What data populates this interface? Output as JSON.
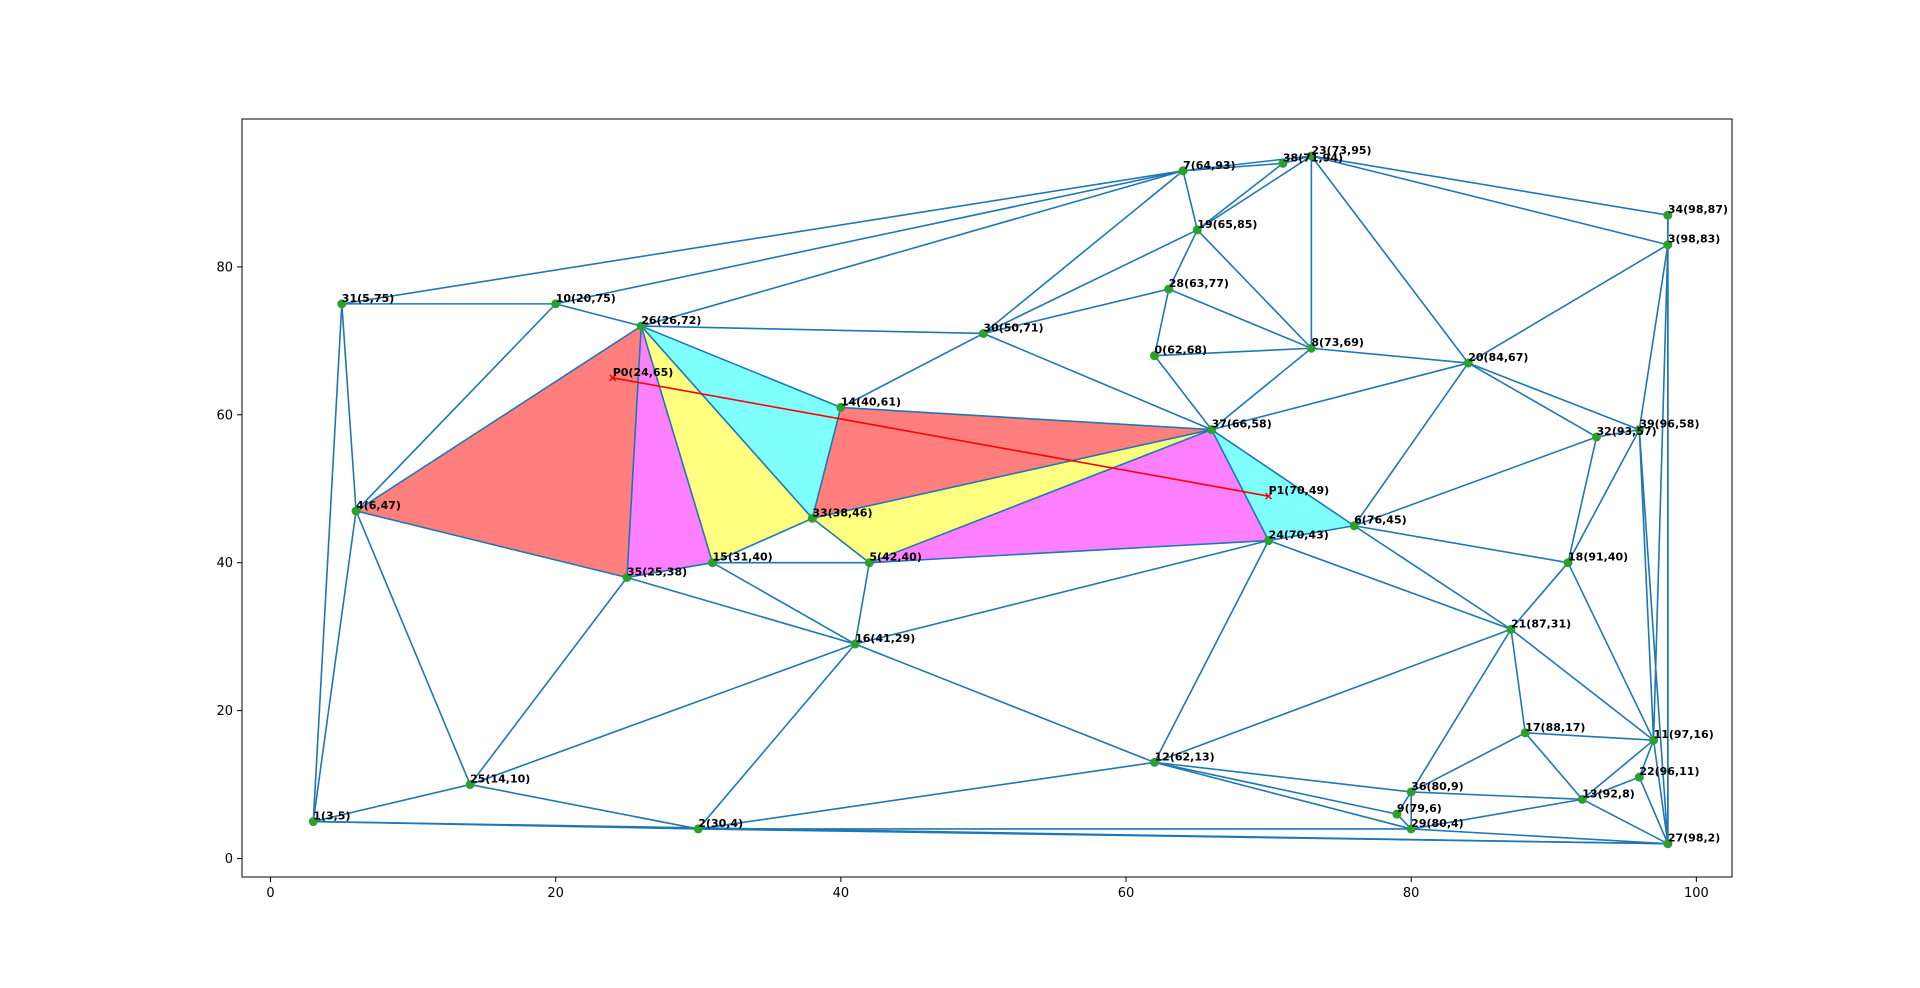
{
  "chart_data": {
    "type": "triangulation",
    "xlim": [
      -2,
      102.5
    ],
    "ylim": [
      -2.5,
      100
    ],
    "x_ticks": [
      0,
      20,
      40,
      60,
      80,
      100
    ],
    "y_ticks": [
      0,
      20,
      40,
      60,
      80
    ],
    "grid": false,
    "colors": {
      "edge": "#1f77b4",
      "point": "#2ca02c",
      "path": "#ff0000",
      "fills": [
        "#ff7f7f",
        "#ff80ff",
        "#ffff80",
        "#80ffff"
      ]
    },
    "points": [
      {
        "id": 0,
        "x": 62,
        "y": 68,
        "label": "0(62,68)"
      },
      {
        "id": 1,
        "x": 3,
        "y": 5,
        "label": "1(3,5)"
      },
      {
        "id": 2,
        "x": 30,
        "y": 4,
        "label": "2(30,4)"
      },
      {
        "id": 3,
        "x": 98,
        "y": 83,
        "label": "3(98,83)"
      },
      {
        "id": 4,
        "x": 6,
        "y": 47,
        "label": "4(6,47)"
      },
      {
        "id": 5,
        "x": 42,
        "y": 40,
        "label": "5(42,40)"
      },
      {
        "id": 6,
        "x": 76,
        "y": 45,
        "label": "6(76,45)"
      },
      {
        "id": 7,
        "x": 64,
        "y": 93,
        "label": "7(64,93)"
      },
      {
        "id": 8,
        "x": 73,
        "y": 69,
        "label": "8(73,69)"
      },
      {
        "id": 9,
        "x": 79,
        "y": 6,
        "label": "9(79,6)"
      },
      {
        "id": 10,
        "x": 20,
        "y": 75,
        "label": "10(20,75)"
      },
      {
        "id": 11,
        "x": 97,
        "y": 16,
        "label": "11(97,16)"
      },
      {
        "id": 12,
        "x": 62,
        "y": 13,
        "label": "12(62,13)"
      },
      {
        "id": 13,
        "x": 92,
        "y": 8,
        "label": "13(92,8)"
      },
      {
        "id": 14,
        "x": 40,
        "y": 61,
        "label": "14(40,61)"
      },
      {
        "id": 15,
        "x": 31,
        "y": 40,
        "label": "15(31,40)"
      },
      {
        "id": 16,
        "x": 41,
        "y": 29,
        "label": "16(41,29)"
      },
      {
        "id": 17,
        "x": 88,
        "y": 17,
        "label": "17(88,17)"
      },
      {
        "id": 18,
        "x": 91,
        "y": 40,
        "label": "18(91,40)"
      },
      {
        "id": 19,
        "x": 65,
        "y": 85,
        "label": "19(65,85)"
      },
      {
        "id": 20,
        "x": 84,
        "y": 67,
        "label": "20(84,67)"
      },
      {
        "id": 21,
        "x": 87,
        "y": 31,
        "label": "21(87,31)"
      },
      {
        "id": 22,
        "x": 96,
        "y": 11,
        "label": "22(96,11)"
      },
      {
        "id": 23,
        "x": 73,
        "y": 95,
        "label": "23(73,95)"
      },
      {
        "id": 24,
        "x": 70,
        "y": 43,
        "label": "24(70,43)"
      },
      {
        "id": 25,
        "x": 14,
        "y": 10,
        "label": "25(14,10)"
      },
      {
        "id": 26,
        "x": 26,
        "y": 72,
        "label": "26(26,72)"
      },
      {
        "id": 27,
        "x": 98,
        "y": 2,
        "label": "27(98,2)"
      },
      {
        "id": 28,
        "x": 63,
        "y": 77,
        "label": "28(63,77)"
      },
      {
        "id": 29,
        "x": 80,
        "y": 4,
        "label": "29(80,4)"
      },
      {
        "id": 30,
        "x": 50,
        "y": 71,
        "label": "30(50,71)"
      },
      {
        "id": 31,
        "x": 5,
        "y": 75,
        "label": "31(5,75)"
      },
      {
        "id": 32,
        "x": 93,
        "y": 57,
        "label": "32(93,57)"
      },
      {
        "id": 33,
        "x": 38,
        "y": 46,
        "label": "33(38,46)"
      },
      {
        "id": 34,
        "x": 98,
        "y": 87,
        "label": "34(98,87)"
      },
      {
        "id": 35,
        "x": 25,
        "y": 38,
        "label": "35(25,38)"
      },
      {
        "id": 36,
        "x": 80,
        "y": 9,
        "label": "36(80,9)"
      },
      {
        "id": 37,
        "x": 66,
        "y": 58,
        "label": "37(66,58)"
      },
      {
        "id": 38,
        "x": 71,
        "y": 94,
        "label": "38(71,94)"
      },
      {
        "id": 39,
        "x": 96,
        "y": 58,
        "label": "39(96,58)"
      }
    ],
    "edges": [
      [
        1,
        31
      ],
      [
        1,
        4
      ],
      [
        1,
        25
      ],
      [
        1,
        2
      ],
      [
        1,
        27
      ],
      [
        31,
        10
      ],
      [
        31,
        4
      ],
      [
        31,
        7
      ],
      [
        10,
        26
      ],
      [
        10,
        4
      ],
      [
        10,
        7
      ],
      [
        4,
        26
      ],
      [
        4,
        35
      ],
      [
        4,
        25
      ],
      [
        26,
        7
      ],
      [
        26,
        30
      ],
      [
        26,
        14
      ],
      [
        26,
        33
      ],
      [
        26,
        15
      ],
      [
        26,
        35
      ],
      [
        35,
        15
      ],
      [
        35,
        25
      ],
      [
        35,
        16
      ],
      [
        15,
        33
      ],
      [
        15,
        5
      ],
      [
        15,
        16
      ],
      [
        33,
        14
      ],
      [
        33,
        5
      ],
      [
        33,
        37
      ],
      [
        14,
        30
      ],
      [
        14,
        37
      ],
      [
        5,
        37
      ],
      [
        5,
        24
      ],
      [
        5,
        16
      ],
      [
        16,
        25
      ],
      [
        16,
        2
      ],
      [
        16,
        24
      ],
      [
        16,
        12
      ],
      [
        25,
        2
      ],
      [
        2,
        12
      ],
      [
        2,
        29
      ],
      [
        2,
        27
      ],
      [
        30,
        7
      ],
      [
        30,
        19
      ],
      [
        30,
        28
      ],
      [
        30,
        37
      ],
      [
        7,
        38
      ],
      [
        7,
        23
      ],
      [
        7,
        19
      ],
      [
        38,
        23
      ],
      [
        38,
        19
      ],
      [
        23,
        19
      ],
      [
        23,
        8
      ],
      [
        23,
        34
      ],
      [
        23,
        3
      ],
      [
        23,
        20
      ],
      [
        19,
        28
      ],
      [
        19,
        8
      ],
      [
        28,
        0
      ],
      [
        28,
        8
      ],
      [
        0,
        8
      ],
      [
        0,
        37
      ],
      [
        8,
        37
      ],
      [
        8,
        20
      ],
      [
        37,
        20
      ],
      [
        37,
        6
      ],
      [
        37,
        24
      ],
      [
        24,
        6
      ],
      [
        24,
        21
      ],
      [
        24,
        12
      ],
      [
        6,
        20
      ],
      [
        6,
        21
      ],
      [
        6,
        18
      ],
      [
        6,
        32
      ],
      [
        20,
        3
      ],
      [
        20,
        32
      ],
      [
        20,
        39
      ],
      [
        3,
        34
      ],
      [
        3,
        39
      ],
      [
        3,
        11
      ],
      [
        3,
        27
      ],
      [
        34,
        27
      ],
      [
        32,
        39
      ],
      [
        32,
        18
      ],
      [
        39,
        18
      ],
      [
        39,
        11
      ],
      [
        39,
        27
      ],
      [
        18,
        21
      ],
      [
        18,
        11
      ],
      [
        21,
        12
      ],
      [
        21,
        36
      ],
      [
        21,
        17
      ],
      [
        21,
        11
      ],
      [
        17,
        36
      ],
      [
        17,
        13
      ],
      [
        17,
        11
      ],
      [
        11,
        22
      ],
      [
        11,
        27
      ],
      [
        11,
        13
      ],
      [
        22,
        13
      ],
      [
        22,
        27
      ],
      [
        13,
        36
      ],
      [
        13,
        29
      ],
      [
        13,
        27
      ],
      [
        36,
        12
      ],
      [
        36,
        9
      ],
      [
        36,
        29
      ],
      [
        9,
        12
      ],
      [
        9,
        29
      ],
      [
        29,
        12
      ],
      [
        29,
        27
      ]
    ],
    "highlighted_triangles": [
      {
        "vertices": [
          4,
          26,
          35
        ],
        "color": "#ff7f7f"
      },
      {
        "vertices": [
          26,
          35,
          15
        ],
        "color": "#ff80ff"
      },
      {
        "vertices": [
          26,
          15,
          33
        ],
        "color": "#ffff80"
      },
      {
        "vertices": [
          26,
          33,
          14
        ],
        "color": "#80ffff"
      },
      {
        "vertices": [
          33,
          14,
          37
        ],
        "color": "#ff7f7f"
      },
      {
        "vertices": [
          33,
          37,
          5
        ],
        "color": "#ffff80"
      },
      {
        "vertices": [
          5,
          37,
          24
        ],
        "color": "#ff80ff"
      },
      {
        "vertices": [
          37,
          24,
          6
        ],
        "color": "#80ffff"
      }
    ],
    "path": {
      "from": {
        "x": 24,
        "y": 65,
        "label": "P0(24,65)"
      },
      "to": {
        "x": 70,
        "y": 49,
        "label": "P1(70,49)"
      }
    }
  }
}
